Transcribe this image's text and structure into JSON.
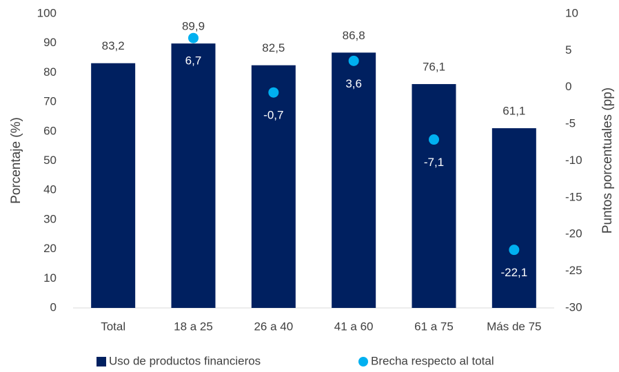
{
  "chart_data": {
    "type": "bar",
    "categories": [
      "Total",
      "18 a 25",
      "26 a 40",
      "41 a 60",
      "61 a 75",
      "Más de 75"
    ],
    "series": [
      {
        "name": "Uso de productos financieros",
        "type": "bar",
        "color": "#002060",
        "values": [
          83.2,
          89.9,
          82.5,
          86.8,
          76.1,
          61.1
        ],
        "value_labels": [
          "83,2",
          "89,9",
          "82,5",
          "86,8",
          "76,1",
          "61,1"
        ]
      },
      {
        "name": "Brecha respecto al total",
        "type": "scatter",
        "axis": "y2",
        "color": "#00b0f0",
        "values": [
          null,
          6.7,
          -0.7,
          3.6,
          -7.1,
          -22.1
        ],
        "value_labels": [
          null,
          "6,7",
          "-0,7",
          "3,6",
          "-7,1",
          "-22,1"
        ]
      }
    ],
    "ylabel": "Porcentaje (%)",
    "y2label": "Puntos porcentuales (pp)",
    "ylim": [
      0,
      100
    ],
    "yticks": [
      0,
      10,
      20,
      30,
      40,
      50,
      60,
      70,
      80,
      90,
      100
    ],
    "y2lim": [
      -30,
      10
    ],
    "y2ticks": [
      -30,
      -25,
      -20,
      -15,
      -10,
      -5,
      0,
      5,
      10
    ],
    "grid": false,
    "legend": "bottom"
  }
}
